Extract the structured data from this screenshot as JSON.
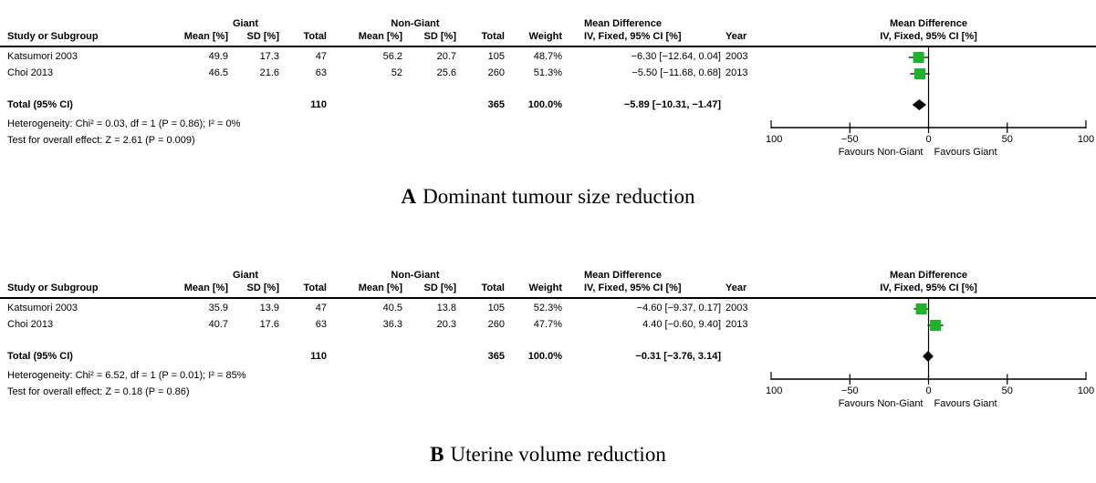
{
  "colors": {
    "square": "#1DB32A",
    "diamond": "#000000",
    "line": "#000000"
  },
  "panels": [
    {
      "caption_letter": "A",
      "caption_text": "Dominant tumour size reduction",
      "group1_label": "Giant",
      "group2_label": "Non-Giant",
      "headers": {
        "study": "Study or Subgroup",
        "mean": "Mean [%]",
        "sd": "SD [%]",
        "total": "Total",
        "weight": "Weight",
        "md_line1": "Mean Difference",
        "md_line2": "IV, Fixed, 95% CI [%]",
        "year": "Year",
        "plot_line1": "Mean Difference",
        "plot_line2": "IV, Fixed, 95% CI [%]"
      },
      "rows": [
        {
          "study": "Katsumori 2003",
          "mean1": "49.9",
          "sd1": "17.3",
          "total1": "47",
          "mean2": "56.2",
          "sd2": "20.7",
          "total2": "105",
          "weight": "48.7%",
          "md": "−6.30 [−12.64, 0.04]",
          "year": "2003"
        },
        {
          "study": "Choi 2013",
          "mean1": "46.5",
          "sd1": "21.6",
          "total1": "63",
          "mean2": "52",
          "sd2": "25.6",
          "total2": "260",
          "weight": "51.3%",
          "md": "−5.50 [−11.68, 0.68]",
          "year": "2013"
        }
      ],
      "total_row": {
        "label": "Total (95% CI)",
        "total1": "110",
        "total2": "365",
        "weight": "100.0%",
        "md": "−5.89 [−10.31, −1.47]"
      },
      "heterogeneity": "Heterogeneity: Chi² = 0.03, df = 1 (P = 0.86); I² = 0%",
      "overall_test": "Test for overall effect: Z = 2.61 (P = 0.009)",
      "axis": {
        "tick_labels": [
          "−100",
          "−50",
          "0",
          "50",
          "100"
        ],
        "favours_left": "Favours Non-Giant",
        "favours_right": "Favours Giant"
      }
    },
    {
      "caption_letter": "B",
      "caption_text": "Uterine volume reduction",
      "group1_label": "Giant",
      "group2_label": "Non-Giant",
      "headers": {
        "study": "Study or Subgroup",
        "mean": "Mean [%]",
        "sd": "SD [%]",
        "total": "Total",
        "weight": "Weight",
        "md_line1": "Mean Difference",
        "md_line2": "IV, Fixed, 95% CI [%]",
        "year": "Year",
        "plot_line1": "Mean Difference",
        "plot_line2": "IV, Fixed, 95% CI [%]"
      },
      "rows": [
        {
          "study": "Katsumori 2003",
          "mean1": "35.9",
          "sd1": "13.9",
          "total1": "47",
          "mean2": "40.5",
          "sd2": "13.8",
          "total2": "105",
          "weight": "52.3%",
          "md": "−4.60 [−9.37, 0.17]",
          "year": "2003"
        },
        {
          "study": "Choi 2013",
          "mean1": "40.7",
          "sd1": "17.6",
          "total1": "63",
          "mean2": "36.3",
          "sd2": "20.3",
          "total2": "260",
          "weight": "47.7%",
          "md": "4.40 [−0.60, 9.40]",
          "year": "2013"
        }
      ],
      "total_row": {
        "label": "Total (95% CI)",
        "total1": "110",
        "total2": "365",
        "weight": "100.0%",
        "md": "−0.31 [−3.76, 3.14]"
      },
      "heterogeneity": "Heterogeneity: Chi² = 6.52, df = 1 (P = 0.01); I² = 85%",
      "overall_test": "Test for overall effect: Z = 0.18 (P = 0.86)",
      "axis": {
        "tick_labels": [
          "−100",
          "−50",
          "0",
          "50",
          "100"
        ],
        "favours_left": "Favours Non-Giant",
        "favours_right": "Favours Giant"
      }
    }
  ],
  "chart_data": [
    {
      "type": "forest",
      "title": "A Dominant tumour size reduction",
      "effect_measure": "Mean Difference, IV, Fixed, 95% CI [%]",
      "studies": [
        {
          "name": "Katsumori 2003",
          "year": 2003,
          "giant": {
            "mean": 49.9,
            "sd": 17.3,
            "total": 47
          },
          "non_giant": {
            "mean": 56.2,
            "sd": 20.7,
            "total": 105
          },
          "weight_pct": 48.7,
          "md": -6.3,
          "ci_low": -12.64,
          "ci_high": 0.04
        },
        {
          "name": "Choi 2013",
          "year": 2013,
          "giant": {
            "mean": 46.5,
            "sd": 21.6,
            "total": 63
          },
          "non_giant": {
            "mean": 52,
            "sd": 25.6,
            "total": 260
          },
          "weight_pct": 51.3,
          "md": -5.5,
          "ci_low": -11.68,
          "ci_high": 0.68
        }
      ],
      "total": {
        "giant_total": 110,
        "non_giant_total": 365,
        "weight_pct": 100.0,
        "md": -5.89,
        "ci_low": -10.31,
        "ci_high": -1.47
      },
      "heterogeneity": {
        "chi2": 0.03,
        "df": 1,
        "p": 0.86,
        "i2_pct": 0
      },
      "overall_effect": {
        "z": 2.61,
        "p": 0.009
      },
      "xlim": [
        -100,
        100
      ],
      "ticks": [
        -100,
        -50,
        0,
        50,
        100
      ],
      "xlabel_left": "Favours Non-Giant",
      "xlabel_right": "Favours Giant"
    },
    {
      "type": "forest",
      "title": "B Uterine volume reduction",
      "effect_measure": "Mean Difference, IV, Fixed, 95% CI [%]",
      "studies": [
        {
          "name": "Katsumori 2003",
          "year": 2003,
          "giant": {
            "mean": 35.9,
            "sd": 13.9,
            "total": 47
          },
          "non_giant": {
            "mean": 40.5,
            "sd": 13.8,
            "total": 105
          },
          "weight_pct": 52.3,
          "md": -4.6,
          "ci_low": -9.37,
          "ci_high": 0.17
        },
        {
          "name": "Choi 2013",
          "year": 2013,
          "giant": {
            "mean": 40.7,
            "sd": 17.6,
            "total": 63
          },
          "non_giant": {
            "mean": 36.3,
            "sd": 20.3,
            "total": 260
          },
          "weight_pct": 47.7,
          "md": 4.4,
          "ci_low": -0.6,
          "ci_high": 9.4
        }
      ],
      "total": {
        "giant_total": 110,
        "non_giant_total": 365,
        "weight_pct": 100.0,
        "md": -0.31,
        "ci_low": -3.76,
        "ci_high": 3.14
      },
      "heterogeneity": {
        "chi2": 6.52,
        "df": 1,
        "p": 0.01,
        "i2_pct": 85
      },
      "overall_effect": {
        "z": 0.18,
        "p": 0.86
      },
      "xlim": [
        -100,
        100
      ],
      "ticks": [
        -100,
        -50,
        0,
        50,
        100
      ],
      "xlabel_left": "Favours Non-Giant",
      "xlabel_right": "Favours Giant"
    }
  ]
}
